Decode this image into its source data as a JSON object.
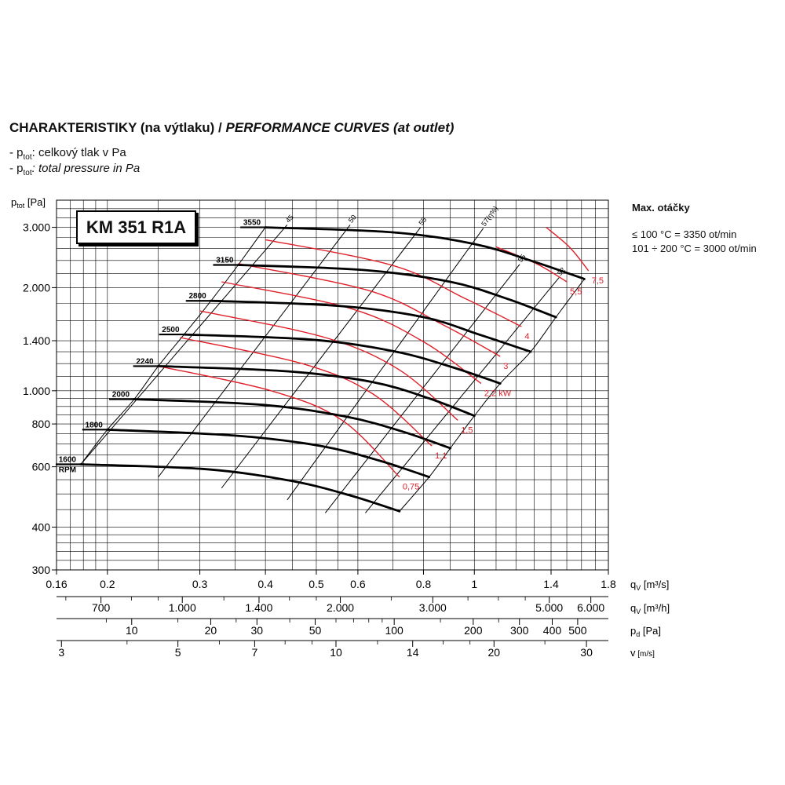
{
  "header": {
    "title_bold": "CHARAKTERISTIKY (na výtlaku) / ",
    "title_italic": "PERFORMANCE CURVES (at outlet)",
    "legend1_prefix": "- p",
    "legend1_sub": "tot",
    "legend1_text": ": celkový tlak v Pa",
    "legend2_prefix": "- p",
    "legend2_sub": "tot",
    "legend2_text": ": total pressure in Pa"
  },
  "model": "KM 351 R1A",
  "side_info": {
    "title": "Max. otáčky",
    "line1": "≤ 100 °C = 3350 ot/min",
    "line2": "101 ÷ 200 °C = 3000 ot/min"
  },
  "colors": {
    "speed": "#000000",
    "power": "#e0202a",
    "grid": "#000000"
  },
  "chart_data": {
    "type": "line",
    "title": "PERFORMANCE CURVES (at outlet)",
    "y_axis": {
      "label_main": "p",
      "label_sub": "tot",
      "label_unit": " [Pa]",
      "scale": "log",
      "range": [
        300,
        3600
      ],
      "ticks": [
        {
          "v": 300,
          "t": "300"
        },
        {
          "v": 400,
          "t": "400"
        },
        {
          "v": 600,
          "t": "600"
        },
        {
          "v": 800,
          "t": "800"
        },
        {
          "v": 1000,
          "t": "1.000"
        },
        {
          "v": 1400,
          "t": "1.400"
        },
        {
          "v": 2000,
          "t": "2.000"
        },
        {
          "v": 3000,
          "t": "3.000"
        }
      ]
    },
    "x_axis": {
      "label_main": "q",
      "label_sub": "V",
      "label_unit": " [m³/s]",
      "scale": "log",
      "range": [
        0.16,
        1.8
      ],
      "ticks": [
        {
          "v": 0.16,
          "t": "0.16"
        },
        {
          "v": 0.2,
          "t": "0.2"
        },
        {
          "v": 0.3,
          "t": "0.3"
        },
        {
          "v": 0.4,
          "t": "0.4"
        },
        {
          "v": 0.5,
          "t": "0.5"
        },
        {
          "v": 0.6,
          "t": "0.6"
        },
        {
          "v": 0.8,
          "t": "0.8"
        },
        {
          "v": 1,
          "t": "1"
        },
        {
          "v": 1.4,
          "t": "1.4"
        },
        {
          "v": 1.8,
          "t": "1.8"
        }
      ]
    },
    "secondary_axes": [
      {
        "label_main": "q",
        "label_sub": "V",
        "label_unit": " [m³/h]",
        "factor": 3600,
        "ticks": [
          {
            "v": 700,
            "t": "700"
          },
          {
            "v": 1000,
            "t": "1.000"
          },
          {
            "v": 1400,
            "t": "1.400"
          },
          {
            "v": 2000,
            "t": "2.000"
          },
          {
            "v": 3000,
            "t": "3.000"
          },
          {
            "v": 5000,
            "t": "5.000"
          },
          {
            "v": 6000,
            "t": "6.000"
          }
        ],
        "minor": [
          600,
          800,
          900,
          1200,
          1600,
          1800,
          2500,
          3500,
          4000,
          4500
        ]
      },
      {
        "label_main": "p",
        "label_sub": "d",
        "label_unit": " [Pa]",
        "factor": "dynamic",
        "ticks": [
          {
            "v": 10,
            "t": "10"
          },
          {
            "v": 20,
            "t": "20"
          },
          {
            "v": 30,
            "t": "30"
          },
          {
            "v": 50,
            "t": "50"
          },
          {
            "v": 100,
            "t": "100"
          },
          {
            "v": 200,
            "t": "200"
          },
          {
            "v": 300,
            "t": "300"
          },
          {
            "v": 400,
            "t": "400"
          },
          {
            "v": 500,
            "t": "500"
          }
        ],
        "minor": [
          8,
          15,
          25,
          40,
          60,
          70,
          80,
          90,
          150,
          250
        ]
      },
      {
        "label_main": "v",
        "label_sub": "",
        "label_unit": " [m/s]",
        "factor": "velocity",
        "ticks": [
          {
            "v": 3,
            "t": "3"
          },
          {
            "v": 5,
            "t": "5"
          },
          {
            "v": 7,
            "t": "7"
          },
          {
            "v": 10,
            "t": "10"
          },
          {
            "v": 14,
            "t": "14"
          },
          {
            "v": 20,
            "t": "20"
          },
          {
            "v": 30,
            "t": "30"
          }
        ],
        "minor": [
          4,
          6,
          8,
          9,
          12,
          16,
          18,
          25
        ]
      }
    ],
    "grid": true,
    "speed_series": [
      {
        "rpm": "3550",
        "points": [
          [
            0.4,
            3000
          ],
          [
            0.7,
            2900
          ],
          [
            1.0,
            2680
          ],
          [
            1.28,
            2400
          ],
          [
            1.62,
            2120
          ]
        ]
      },
      {
        "rpm": "3150",
        "points": [
          [
            0.355,
            2330
          ],
          [
            0.62,
            2250
          ],
          [
            0.9,
            2080
          ],
          [
            1.15,
            1860
          ],
          [
            1.43,
            1640
          ]
        ]
      },
      {
        "rpm": "2800",
        "points": [
          [
            0.315,
            1830
          ],
          [
            0.55,
            1770
          ],
          [
            0.8,
            1640
          ],
          [
            1.02,
            1460
          ],
          [
            1.28,
            1300
          ]
        ]
      },
      {
        "rpm": "2500",
        "points": [
          [
            0.28,
            1460
          ],
          [
            0.49,
            1410
          ],
          [
            0.71,
            1300
          ],
          [
            0.91,
            1170
          ],
          [
            1.12,
            1050
          ]
        ]
      },
      {
        "rpm": "2240",
        "points": [
          [
            0.25,
            1180
          ],
          [
            0.44,
            1140
          ],
          [
            0.64,
            1060
          ],
          [
            0.82,
            950
          ],
          [
            1.0,
            845
          ]
        ]
      },
      {
        "rpm": "2000",
        "points": [
          [
            0.225,
            945
          ],
          [
            0.395,
            910
          ],
          [
            0.57,
            840
          ],
          [
            0.73,
            760
          ],
          [
            0.9,
            680
          ]
        ]
      },
      {
        "rpm": "1800",
        "points": [
          [
            0.2,
            770
          ],
          [
            0.35,
            740
          ],
          [
            0.51,
            690
          ],
          [
            0.66,
            625
          ],
          [
            0.82,
            560
          ]
        ]
      },
      {
        "rpm": "1600",
        "points": [
          [
            0.178,
            610
          ],
          [
            0.31,
            590
          ],
          [
            0.45,
            545
          ],
          [
            0.58,
            495
          ],
          [
            0.72,
            445
          ]
        ]
      }
    ],
    "rpm_unit_label": "RPM",
    "power_series": [
      {
        "label": "0,75",
        "points": [
          [
            0.25,
            1180
          ],
          [
            0.41,
            1000
          ],
          [
            0.56,
            820
          ],
          [
            0.72,
            560
          ]
        ]
      },
      {
        "label": "1,1",
        "points": [
          [
            0.275,
            1430
          ],
          [
            0.47,
            1200
          ],
          [
            0.64,
            980
          ],
          [
            0.83,
            690
          ]
        ]
      },
      {
        "label": "1,5",
        "points": [
          [
            0.3,
            1710
          ],
          [
            0.52,
            1430
          ],
          [
            0.72,
            1150
          ],
          [
            0.93,
            820
          ]
        ]
      },
      {
        "label": "2,2 kW",
        "points": [
          [
            0.33,
            2080
          ],
          [
            0.58,
            1740
          ],
          [
            0.8,
            1390
          ],
          [
            1.03,
            1050
          ]
        ]
      },
      {
        "label": "3",
        "points": [
          [
            0.355,
            2350
          ],
          [
            0.63,
            1960
          ],
          [
            0.87,
            1560
          ],
          [
            1.12,
            1260
          ]
        ]
      },
      {
        "label": "4",
        "points": [
          [
            0.4,
            2760
          ],
          [
            0.7,
            2320
          ],
          [
            0.96,
            1860
          ],
          [
            1.23,
            1540
          ]
        ]
      },
      {
        "label": "5,5",
        "points": [
          [
            1.1,
            2630
          ],
          [
            1.32,
            2340
          ],
          [
            1.5,
            2080
          ]
        ]
      },
      {
        "label": "7,5",
        "points": [
          [
            1.37,
            3000
          ],
          [
            1.52,
            2620
          ],
          [
            1.65,
            2240
          ]
        ]
      }
    ],
    "efficiency_lines": [
      {
        "label": "45",
        "points": [
          [
            0.178,
            610
          ],
          [
            0.44,
            3050
          ]
        ]
      },
      {
        "label": "50",
        "points": [
          [
            0.25,
            560
          ],
          [
            0.58,
            3050
          ]
        ]
      },
      {
        "label": "55",
        "points": [
          [
            0.33,
            520
          ],
          [
            0.79,
            3000
          ]
        ]
      },
      {
        "label": "57(η%)",
        "points": [
          [
            0.44,
            480
          ],
          [
            1.04,
            2980
          ]
        ]
      },
      {
        "label": "55",
        "points": [
          [
            0.52,
            440
          ],
          [
            1.22,
            2340
          ]
        ]
      },
      {
        "label": "52",
        "points": [
          [
            0.62,
            440
          ],
          [
            1.45,
            2140
          ]
        ]
      }
    ]
  }
}
